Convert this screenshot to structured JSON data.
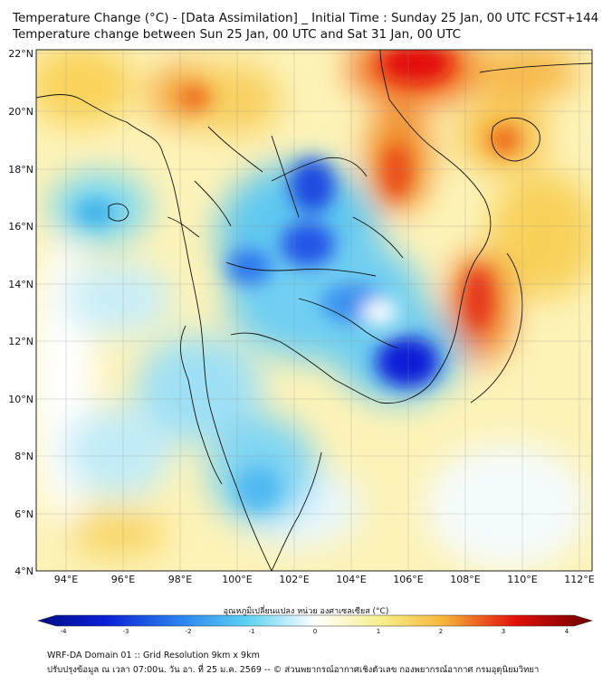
{
  "title": {
    "line1": "Temperature Change (°C) - [Data Assimilation] _ Initial Time : Sunday 25 Jan, 00 UTC FCST+144",
    "line2": "Temperature change between Sun 25 Jan, 00 UTC and Sat 31 Jan, 00 UTC"
  },
  "map": {
    "lat_labels": [
      "22°N",
      "20°N",
      "18°N",
      "16°N",
      "14°N",
      "12°N",
      "10°N",
      "8°N",
      "6°N",
      "4°N"
    ],
    "lon_labels": [
      "94°E",
      "96°E",
      "98°E",
      "100°E",
      "102°E",
      "104°E",
      "106°E",
      "108°E",
      "110°E",
      "112°E"
    ],
    "extent": {
      "lon_min": 93,
      "lon_max": 112.5,
      "lat_min": 4,
      "lat_max": 22.2
    }
  },
  "colorbar": {
    "title": "อุณหภูมิเปลี่ยนแปลง หน่วย องศาเซลเซียส (°C)",
    "ticks": [
      "-4",
      "-3",
      "-2",
      "-1",
      "0",
      "1",
      "2",
      "3",
      "4"
    ],
    "range": [
      -4,
      4
    ]
  },
  "footer": {
    "line1": "WRF-DA Domain 01 :: Grid Resolution 9km x 9km",
    "line2": "ปรับปรุงข้อมูล ณ เวลา 07:00น. วัน อา. ที่ 25 ม.ค. 2569 -- © ส่วนพยากรณ์อากาศเชิงตัวเลข กองพยากรณ์อากาศ กรมอุตุนิยมวิทยา"
  },
  "colors": {
    "cold": "#0a1fd6",
    "cool": "#5fd3f2",
    "neutral": "#ffffff",
    "warm": "#f7cf42",
    "hot": "#e3110a"
  }
}
